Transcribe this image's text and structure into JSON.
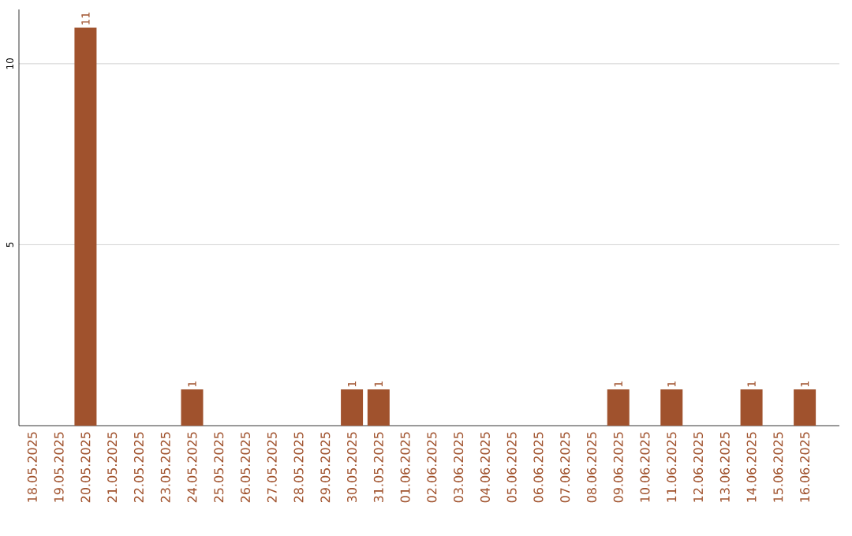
{
  "chart_data": {
    "type": "bar",
    "categories": [
      "18.05.2025",
      "19.05.2025",
      "20.05.2025",
      "21.05.2025",
      "22.05.2025",
      "23.05.2025",
      "24.05.2025",
      "25.05.2025",
      "26.05.2025",
      "27.05.2025",
      "28.05.2025",
      "29.05.2025",
      "30.05.2025",
      "31.05.2025",
      "01.06.2025",
      "02.06.2025",
      "03.06.2025",
      "04.06.2025",
      "05.06.2025",
      "06.06.2025",
      "07.06.2025",
      "08.06.2025",
      "09.06.2025",
      "10.06.2025",
      "11.06.2025",
      "12.06.2025",
      "13.06.2025",
      "14.06.2025",
      "15.06.2025",
      "16.06.2025"
    ],
    "values": [
      0,
      0,
      11,
      0,
      0,
      0,
      1,
      0,
      0,
      0,
      0,
      0,
      1,
      1,
      0,
      0,
      0,
      0,
      0,
      0,
      0,
      0,
      1,
      0,
      1,
      0,
      0,
      1,
      0,
      1
    ],
    "value_labels": [
      null,
      null,
      "11",
      null,
      null,
      null,
      "1",
      null,
      null,
      null,
      null,
      null,
      "1",
      "1",
      null,
      null,
      null,
      null,
      null,
      null,
      null,
      null,
      "1",
      null,
      "1",
      null,
      null,
      "1",
      null,
      "1"
    ],
    "color": "#a0522d",
    "ylim": [
      0,
      11.5
    ],
    "yticks": [
      5,
      10
    ],
    "grid": "y"
  }
}
